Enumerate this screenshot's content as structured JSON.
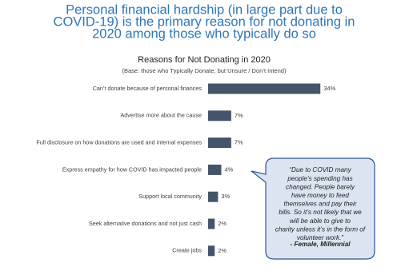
{
  "headline": [
    "Personal financial hardship (in large part due to",
    "COVID-19) is the primary reason for not donating in",
    "2020 among those who typically do so"
  ],
  "chart_data": {
    "type": "hbar",
    "title": "Reasons for Not Donating in 2020",
    "subtitle": "(Base: those who Typically Donate, but Unsure / Don’t Intend)",
    "categories": [
      "Can’t donate because of personal finances",
      "Advertise more about the cause",
      "Full disclosure on how donations are used and internal expenses",
      "Express empathy for how COVID has impacted people",
      "Support local community",
      "Seek alternative donations and not just cash",
      "Create jobs"
    ],
    "values": [
      34,
      7,
      7,
      4,
      3,
      2,
      2
    ],
    "value_labels": [
      "34%",
      "7%",
      "7%",
      "4%",
      "3%",
      "2%",
      "2%"
    ],
    "color": "#44546a",
    "xlim": [
      0,
      40
    ]
  },
  "callout": {
    "quote_lines": [
      "“Due to COVID many",
      "people’s spending has",
      "changed. People barely",
      "have money to feed",
      "themselves and pay their",
      "bills. So it’s not likely that we",
      "will be able to give to",
      "charity unless it’s in the form of",
      "volunteer work.”"
    ],
    "attribution": "- Female, Millennial"
  }
}
